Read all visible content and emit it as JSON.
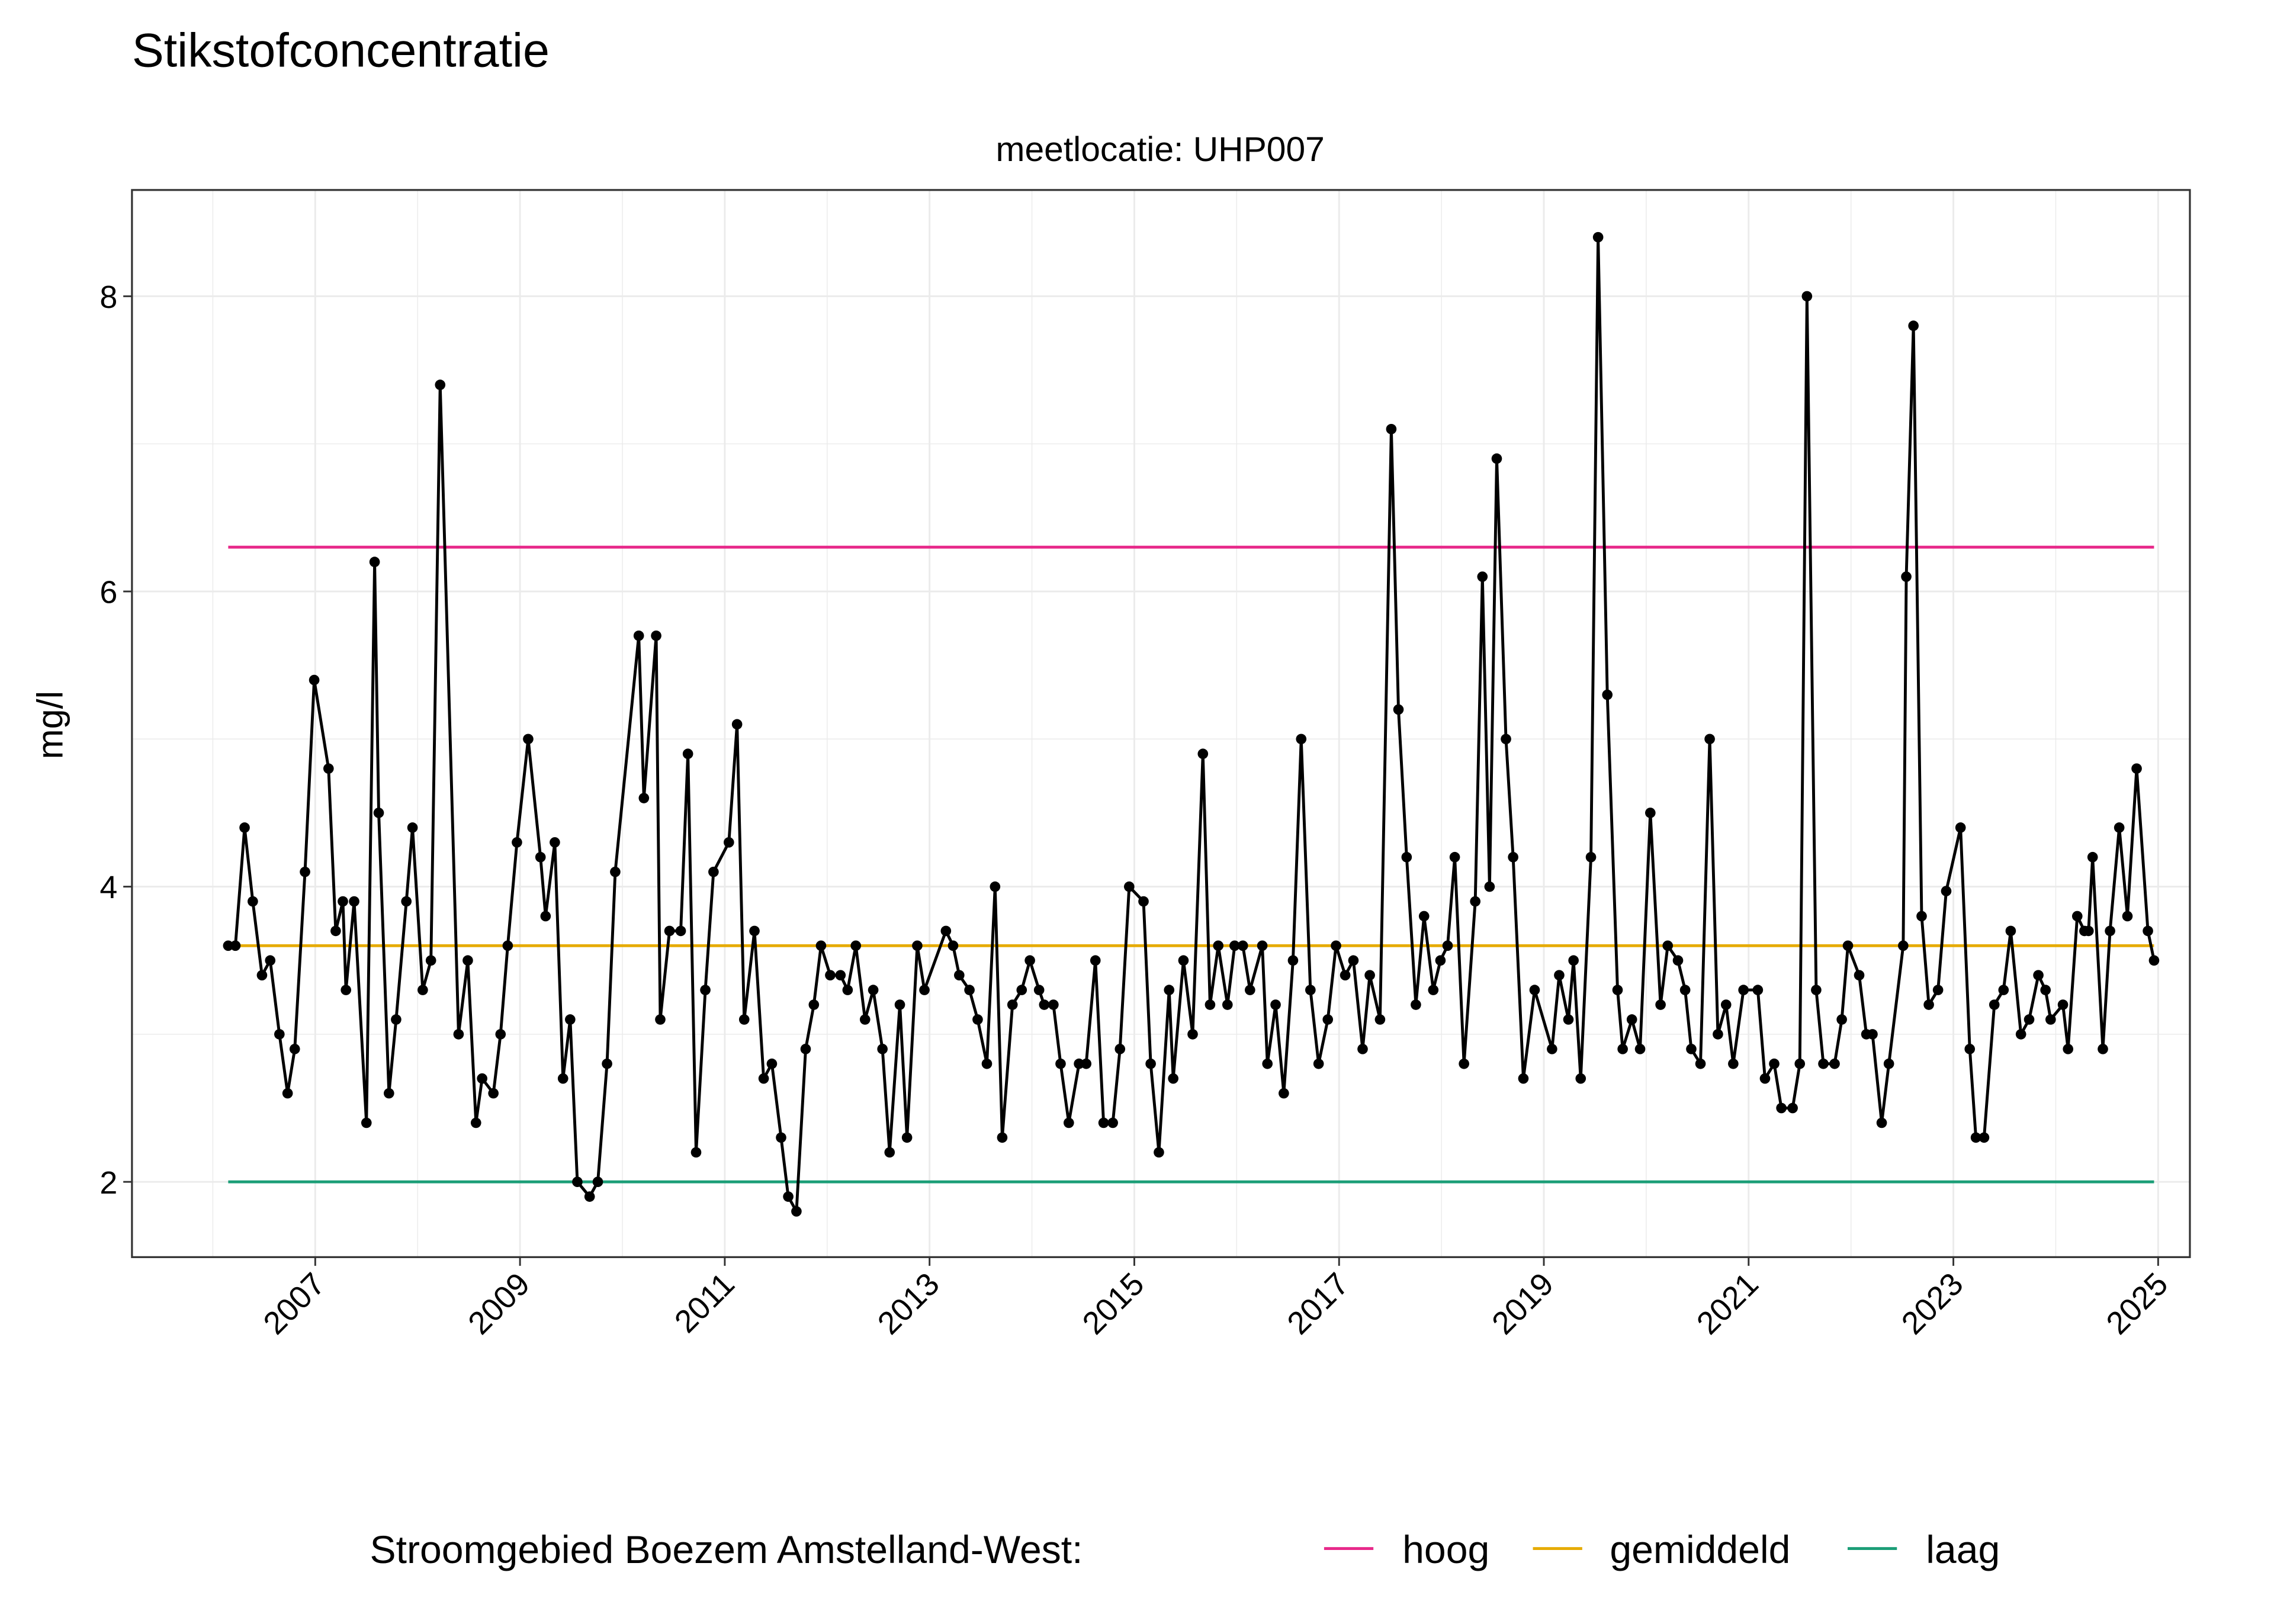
{
  "chart_data": {
    "type": "line",
    "title": "Stikstofconcentratie",
    "subtitle": "meetlocatie: UHP007",
    "ylabel": "mg/l",
    "legend_title": "Stroomgebied Boezem Amstelland-West:",
    "color": "#000000",
    "grid": true,
    "legend": "bottom",
    "xlim": [
      2005.21,
      2025.31
    ],
    "xticks": [
      2007,
      2009,
      2011,
      2013,
      2015,
      2017,
      2019,
      2021,
      2023,
      2025
    ],
    "ylim": [
      1.49,
      8.72
    ],
    "yticks": [
      2,
      4,
      6,
      8
    ],
    "x": [
      2006.15,
      2006.22,
      2006.31,
      2006.39,
      2006.48,
      2006.56,
      2006.65,
      2006.73,
      2006.8,
      2006.9,
      2006.99,
      2007.13,
      2007.2,
      2007.27,
      2007.3,
      2007.38,
      2007.5,
      2007.58,
      2007.62,
      2007.72,
      2007.79,
      2007.89,
      2007.95,
      2008.05,
      2008.13,
      2008.22,
      2008.4,
      2008.49,
      2008.57,
      2008.63,
      2008.74,
      2008.81,
      2008.88,
      2008.97,
      2009.08,
      2009.2,
      2009.25,
      2009.34,
      2009.42,
      2009.49,
      2009.56,
      2009.68,
      2009.76,
      2009.85,
      2009.93,
      2010.16,
      2010.21,
      2010.33,
      2010.37,
      2010.46,
      2010.57,
      2010.64,
      2010.72,
      2010.81,
      2010.89,
      2011.04,
      2011.12,
      2011.19,
      2011.29,
      2011.38,
      2011.46,
      2011.55,
      2011.62,
      2011.7,
      2011.79,
      2011.87,
      2011.94,
      2012.03,
      2012.13,
      2012.2,
      2012.28,
      2012.37,
      2012.45,
      2012.54,
      2012.61,
      2012.71,
      2012.78,
      2012.88,
      2012.95,
      2013.16,
      2013.23,
      2013.29,
      2013.39,
      2013.47,
      2013.56,
      2013.64,
      2013.71,
      2013.81,
      2013.9,
      2013.98,
      2014.07,
      2014.12,
      2014.21,
      2014.28,
      2014.36,
      2014.46,
      2014.53,
      2014.62,
      2014.7,
      2014.79,
      2014.86,
      2014.95,
      2015.09,
      2015.16,
      2015.24,
      2015.34,
      2015.38,
      2015.48,
      2015.57,
      2015.67,
      2015.74,
      2015.82,
      2015.91,
      2015.98,
      2016.06,
      2016.13,
      2016.25,
      2016.3,
      2016.38,
      2016.46,
      2016.55,
      2016.63,
      2016.72,
      2016.8,
      2016.89,
      2016.97,
      2017.06,
      2017.14,
      2017.23,
      2017.3,
      2017.4,
      2017.51,
      2017.58,
      2017.66,
      2017.75,
      2017.83,
      2017.92,
      2017.99,
      2018.06,
      2018.13,
      2018.22,
      2018.33,
      2018.4,
      2018.47,
      2018.54,
      2018.63,
      2018.7,
      2018.8,
      2018.91,
      2019.08,
      2019.15,
      2019.24,
      2019.29,
      2019.36,
      2019.46,
      2019.53,
      2019.62,
      2019.72,
      2019.77,
      2019.86,
      2019.94,
      2020.04,
      2020.14,
      2020.21,
      2020.31,
      2020.38,
      2020.44,
      2020.53,
      2020.62,
      2020.7,
      2020.78,
      2020.85,
      2020.95,
      2021.09,
      2021.16,
      2021.25,
      2021.32,
      2021.43,
      2021.5,
      2021.57,
      2021.66,
      2021.73,
      2021.84,
      2021.91,
      2021.97,
      2022.08,
      2022.15,
      2022.21,
      2022.3,
      2022.37,
      2022.51,
      2022.54,
      2022.61,
      2022.69,
      2022.76,
      2022.85,
      2022.93,
      2023.07,
      2023.16,
      2023.22,
      2023.3,
      2023.4,
      2023.49,
      2023.56,
      2023.66,
      2023.74,
      2023.83,
      2023.9,
      2023.95,
      2024.07,
      2024.12,
      2024.21,
      2024.28,
      2024.32,
      2024.36,
      2024.46,
      2024.53,
      2024.62,
      2024.7,
      2024.79,
      2024.9,
      2024.96
    ],
    "values": [
      3.6,
      3.6,
      4.4,
      3.9,
      3.4,
      3.5,
      3.0,
      2.6,
      2.9,
      4.1,
      5.4,
      4.8,
      3.7,
      3.9,
      3.3,
      3.9,
      2.4,
      6.2,
      4.5,
      2.6,
      3.1,
      3.9,
      4.4,
      3.3,
      3.5,
      7.4,
      3.0,
      3.5,
      2.4,
      2.7,
      2.6,
      3.0,
      3.6,
      4.3,
      5.0,
      4.2,
      3.8,
      4.3,
      2.7,
      3.1,
      2.0,
      1.9,
      2.0,
      2.8,
      4.1,
      5.7,
      4.6,
      5.7,
      3.1,
      3.7,
      3.7,
      4.9,
      2.2,
      3.3,
      4.1,
      4.3,
      5.1,
      3.1,
      3.7,
      2.7,
      2.8,
      2.3,
      1.9,
      1.8,
      2.9,
      3.2,
      3.6,
      3.4,
      3.4,
      3.3,
      3.6,
      3.1,
      3.3,
      2.9,
      2.2,
      3.2,
      2.3,
      3.6,
      3.3,
      3.7,
      3.6,
      3.4,
      3.3,
      3.1,
      2.8,
      4.0,
      2.3,
      3.2,
      3.3,
      3.5,
      3.3,
      3.2,
      3.2,
      2.8,
      2.4,
      2.8,
      2.8,
      3.5,
      2.4,
      2.4,
      2.9,
      4.0,
      3.9,
      2.8,
      2.2,
      3.3,
      2.7,
      3.5,
      3.0,
      4.9,
      3.2,
      3.6,
      3.2,
      3.6,
      3.6,
      3.3,
      3.6,
      2.8,
      3.2,
      2.6,
      3.5,
      5.0,
      3.3,
      2.8,
      3.1,
      3.6,
      3.4,
      3.5,
      2.9,
      3.4,
      3.1,
      7.1,
      5.2,
      4.2,
      3.2,
      3.8,
      3.3,
      3.5,
      3.6,
      4.2,
      2.8,
      3.9,
      6.1,
      4.0,
      6.9,
      5.0,
      4.2,
      2.7,
      3.3,
      2.9,
      3.4,
      3.1,
      3.5,
      2.7,
      4.2,
      8.4,
      5.3,
      3.3,
      2.9,
      3.1,
      2.9,
      4.5,
      3.2,
      3.6,
      3.5,
      3.3,
      2.9,
      2.8,
      5.0,
      3.0,
      3.2,
      2.8,
      3.3,
      3.3,
      2.7,
      2.8,
      2.5,
      2.5,
      2.8,
      8.0,
      3.3,
      2.8,
      2.8,
      3.1,
      3.6,
      3.4,
      3.0,
      3.0,
      2.4,
      2.8,
      3.6,
      6.1,
      7.8,
      3.8,
      3.2,
      3.3,
      3.97,
      4.4,
      2.9,
      2.3,
      2.3,
      3.2,
      3.3,
      3.7,
      3.0,
      3.1,
      3.4,
      3.3,
      3.1,
      3.2,
      2.9,
      3.8,
      3.7,
      3.7,
      4.2,
      2.9,
      3.7,
      4.4,
      3.8,
      4.8,
      3.7,
      3.5
    ],
    "series": [
      {
        "name": "hoog",
        "color": "#e7298a",
        "x": [
          2006.15,
          2024.96
        ],
        "values": [
          6.3,
          6.3
        ]
      },
      {
        "name": "gemiddeld",
        "color": "#e6ab02",
        "x": [
          2006.15,
          2024.96
        ],
        "values": [
          3.6,
          3.6
        ]
      },
      {
        "name": "laag",
        "color": "#1b9e77",
        "x": [
          2006.15,
          2024.96
        ],
        "values": [
          2.0,
          2.0
        ]
      }
    ]
  }
}
